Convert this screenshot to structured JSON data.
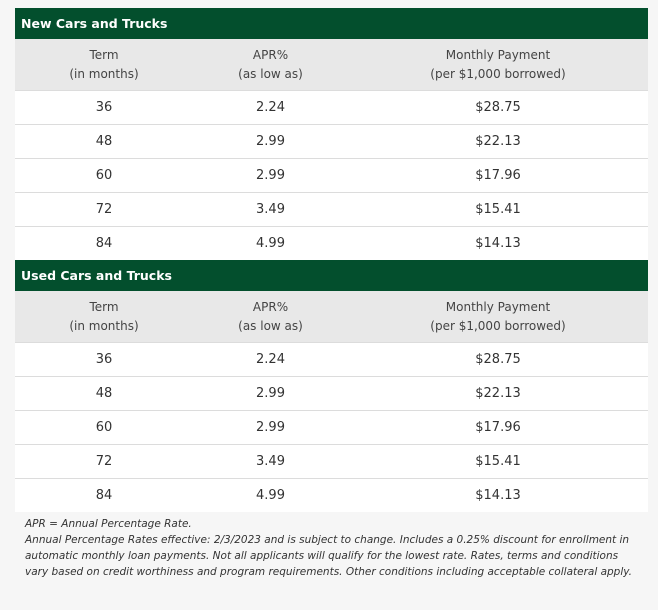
{
  "tables": [
    {
      "title": "New Cars and Trucks",
      "headers": [
        [
          "Term",
          "(in months)"
        ],
        [
          "APR%",
          "(as low as)"
        ],
        [
          "Monthly Payment",
          "(per $1,000 borrowed)"
        ]
      ],
      "rows": [
        [
          "36",
          "2.24",
          "$28.75"
        ],
        [
          "48",
          "2.99",
          "$22.13"
        ],
        [
          "60",
          "2.99",
          "$17.96"
        ],
        [
          "72",
          "3.49",
          "$15.41"
        ],
        [
          "84",
          "4.99",
          "$14.13"
        ]
      ]
    },
    {
      "title": "Used Cars and Trucks",
      "headers": [
        [
          "Term",
          "(in months)"
        ],
        [
          "APR%",
          "(as low as)"
        ],
        [
          "Monthly Payment",
          "(per $1,000 borrowed)"
        ]
      ],
      "rows": [
        [
          "36",
          "2.24",
          "$28.75"
        ],
        [
          "48",
          "2.99",
          "$22.13"
        ],
        [
          "60",
          "2.99",
          "$17.96"
        ],
        [
          "72",
          "3.49",
          "$15.41"
        ],
        [
          "84",
          "4.99",
          "$14.13"
        ]
      ]
    }
  ],
  "notes": [
    "APR = Annual Percentage Rate.",
    "Annual Percentage Rates effective: 2/3/2023 and is subject to change. Includes a 0.25% discount for enrollment in automatic monthly loan payments. Not all applicants will qualify for the lowest rate. Rates, terms and conditions vary based on credit worthiness and program requirements. Other conditions including acceptable collateral apply."
  ]
}
